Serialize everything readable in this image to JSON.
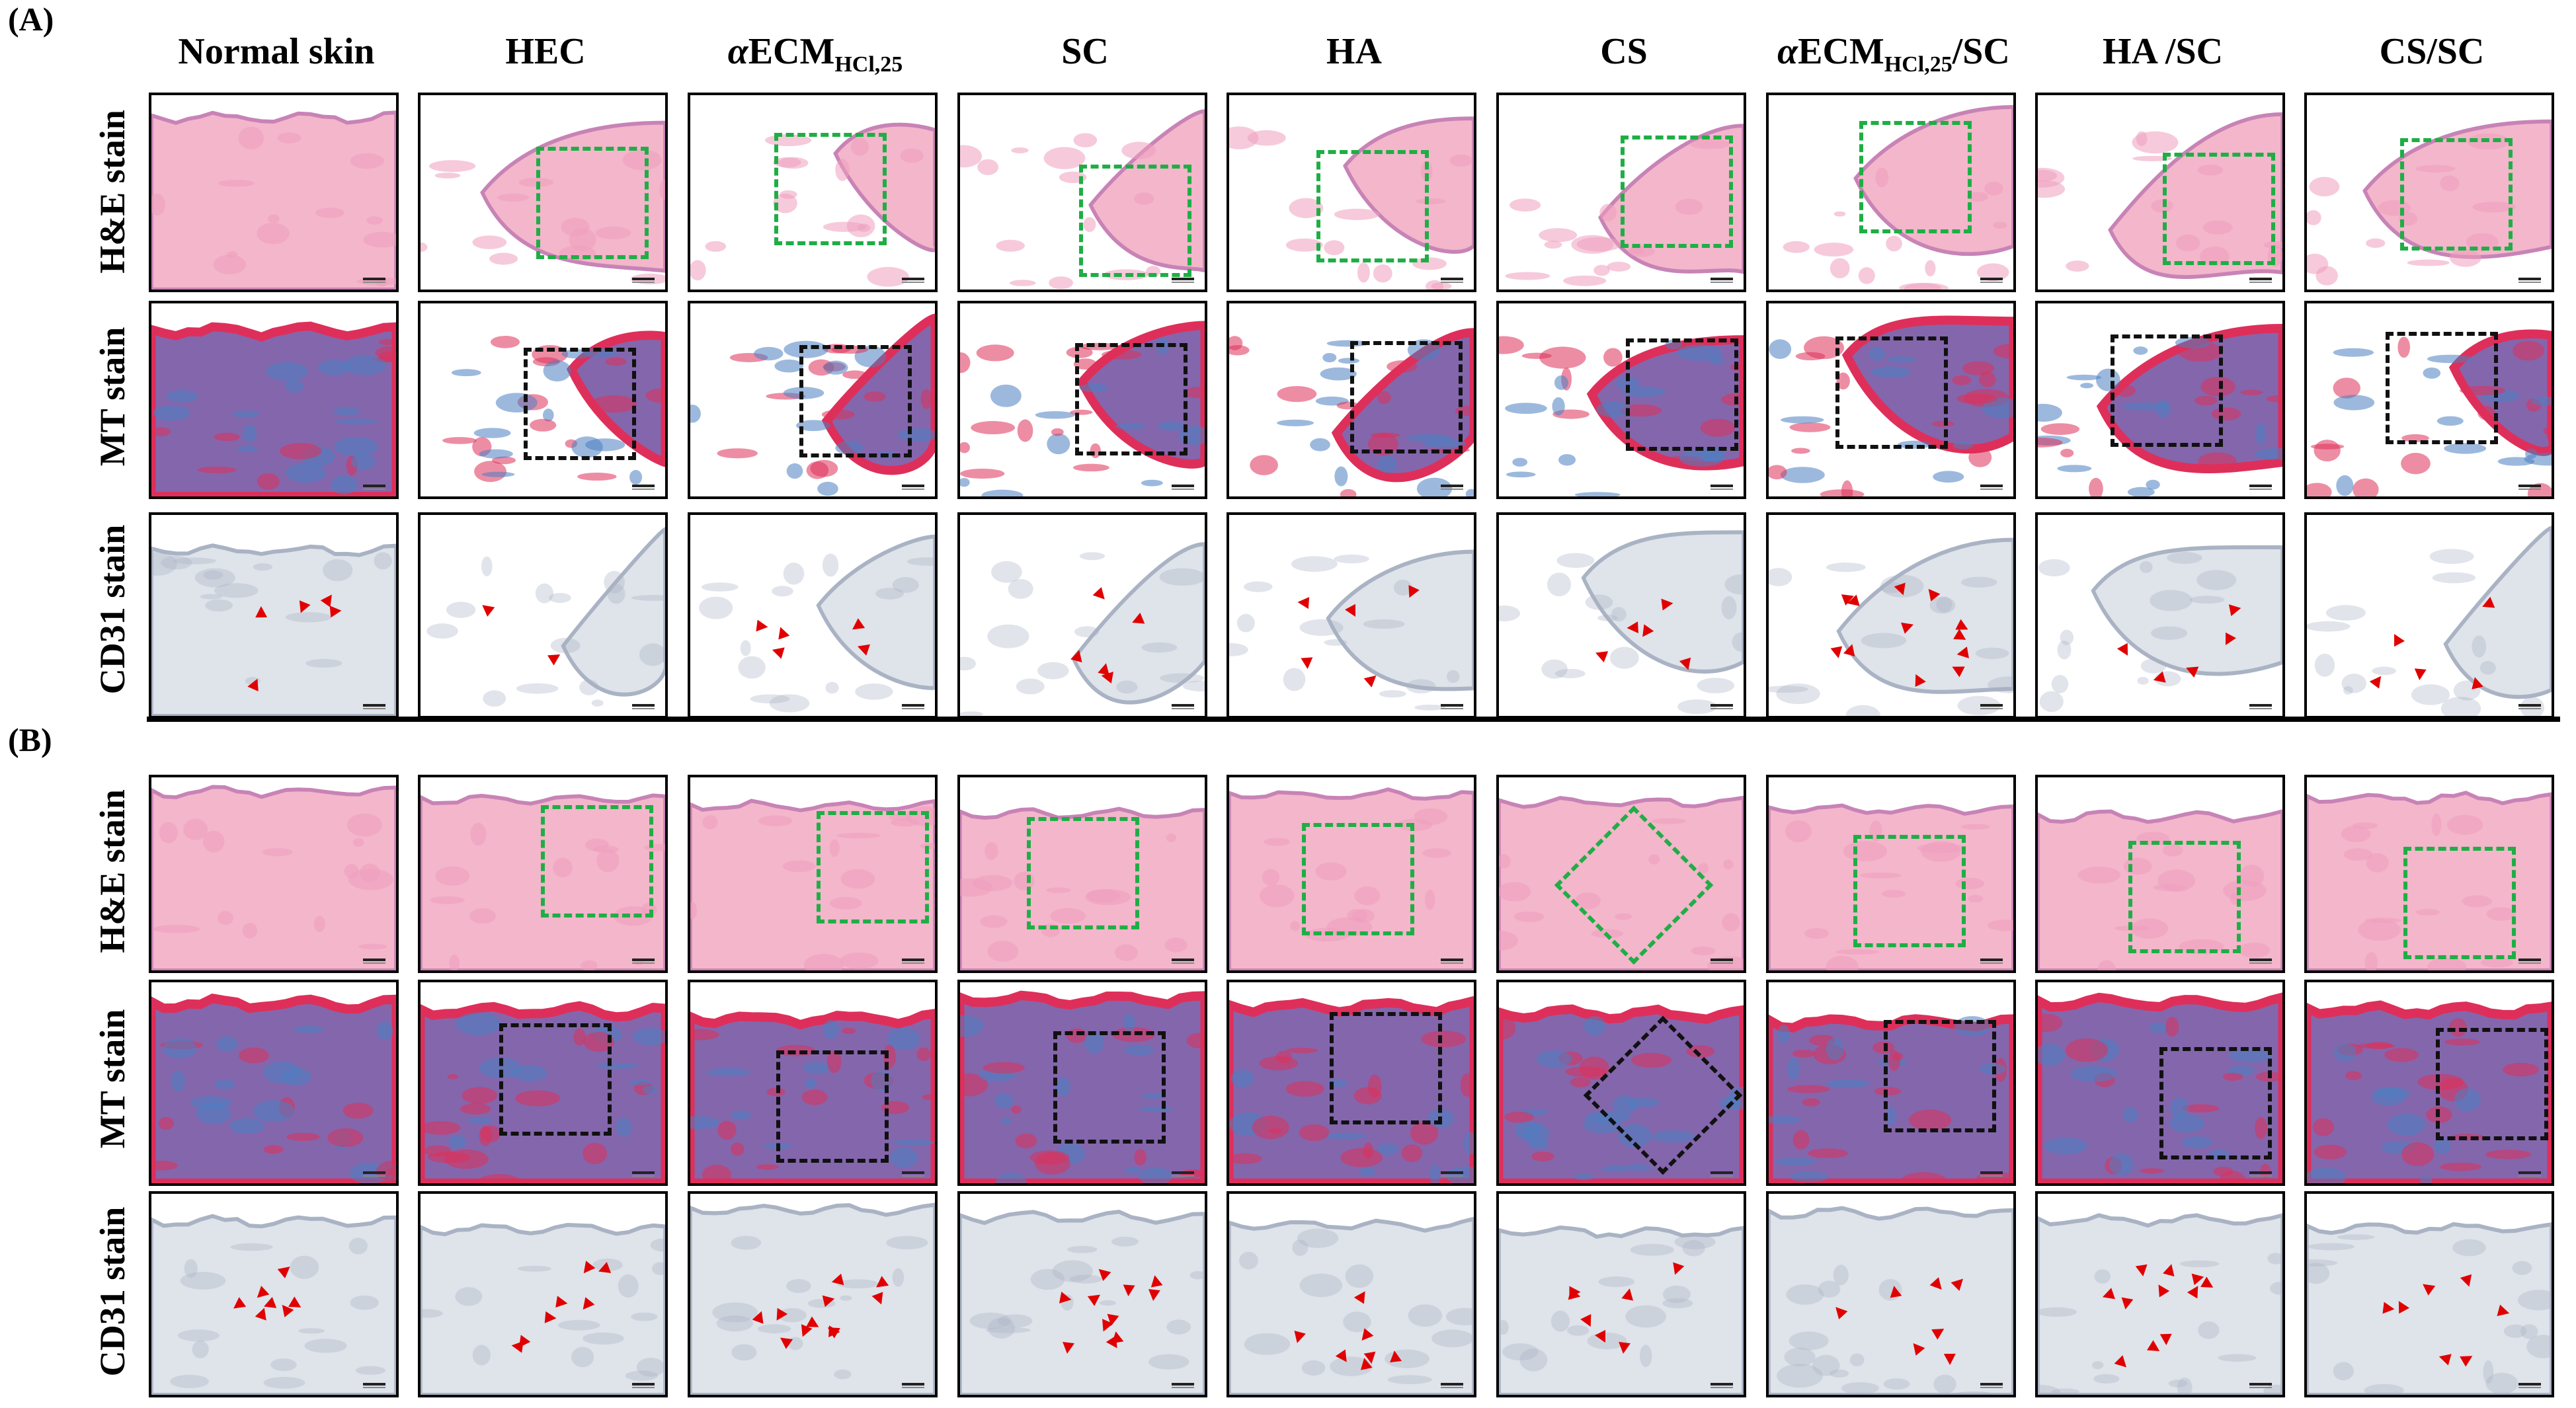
{
  "panels": {
    "a": "(A)",
    "b": "(B)"
  },
  "columns": [
    {
      "pre": "Normal skin",
      "italic": "",
      "main": "",
      "sub": "",
      "post": ""
    },
    {
      "pre": "HEC",
      "italic": "",
      "main": "",
      "sub": "",
      "post": ""
    },
    {
      "pre": "",
      "italic": "α",
      "main": "ECM",
      "sub": "HCl,25",
      "post": ""
    },
    {
      "pre": "SC",
      "italic": "",
      "main": "",
      "sub": "",
      "post": ""
    },
    {
      "pre": "HA",
      "italic": "",
      "main": "",
      "sub": "",
      "post": ""
    },
    {
      "pre": "CS",
      "italic": "",
      "main": "",
      "sub": "",
      "post": ""
    },
    {
      "pre": "",
      "italic": "α",
      "main": "ECM",
      "sub": "HCl,25",
      "post": "/SC"
    },
    {
      "pre": "HA /SC",
      "italic": "",
      "main": "",
      "sub": "",
      "post": ""
    },
    {
      "pre": "CS/SC",
      "italic": "",
      "main": "",
      "sub": "",
      "post": ""
    }
  ],
  "row_labels": {
    "he": "H&E stain",
    "mt": "MT stain",
    "cd31": "CD31 stain"
  },
  "colors": {
    "he_tissue": "#f3b6cb",
    "he_dermis": "#ef9fbd",
    "he_epidermis": "#c883b6",
    "mt_blue": "#4a7fc1",
    "mt_red": "#de2f5a",
    "mt_purple": "#8466ad",
    "cd31_tissue": "#dfe3ea",
    "cd31_edge": "#a9b3c4",
    "roi_green": "#1fae45",
    "roi_black": "#111111",
    "arrowhead": "#e00000"
  }
}
